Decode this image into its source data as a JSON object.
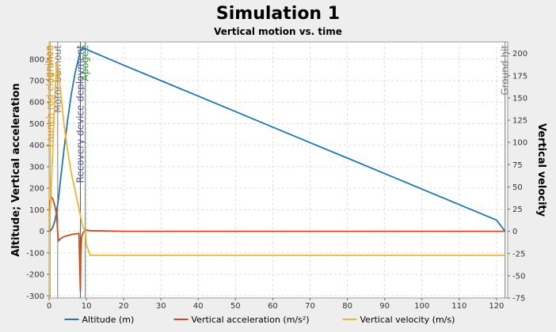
{
  "chart_data": {
    "type": "line",
    "title": "Simulation 1",
    "subtitle": "Vertical motion vs. time",
    "ylabel_left": "Altitude; Vertical acceleration",
    "ylabel_right": "Vertical velocity",
    "xlim": [
      0,
      123
    ],
    "ylim_left": [
      -310,
      880
    ],
    "ylim_right": [
      -75,
      213
    ],
    "x_ticks": [
      0,
      10,
      20,
      30,
      40,
      50,
      60,
      70,
      80,
      90,
      100,
      110,
      120
    ],
    "y_ticks_left": [
      -300,
      -200,
      -100,
      0,
      100,
      200,
      300,
      400,
      500,
      600,
      700,
      800
    ],
    "y_ticks_right": [
      -75,
      -50,
      -25,
      0,
      25,
      50,
      75,
      100,
      125,
      150,
      175,
      200
    ],
    "grid": true,
    "legend_position": "bottom",
    "events": [
      {
        "label": "Ignition",
        "x": 0,
        "color": "#d99a1e"
      },
      {
        "label": "Launch rod clearance",
        "x": 0.3,
        "color": "#d99a1e"
      },
      {
        "label": "Motor burnout",
        "x": 2.3,
        "color": "#7a7a7a"
      },
      {
        "label": "Recovery device deployment",
        "x": 8.4,
        "color": "#4c4ca6"
      },
      {
        "label": "Apogee",
        "x": 9.7,
        "color": "#3a9c3a"
      },
      {
        "label": "Ground hit",
        "x": 122.3,
        "color": "#7a7a7a"
      }
    ],
    "series": [
      {
        "name": "Altitude (m)",
        "axis": "left",
        "color": "#1f77b4",
        "x": [
          0,
          0.5,
          1,
          1.5,
          2,
          2.5,
          3,
          4,
          5,
          6,
          7,
          8,
          8.5,
          9,
          9.7,
          10,
          20,
          30,
          40,
          50,
          60,
          70,
          80,
          90,
          100,
          110,
          120,
          122.3
        ],
        "y": [
          0,
          5,
          20,
          45,
          90,
          150,
          230,
          380,
          520,
          640,
          740,
          810,
          840,
          850,
          850,
          845,
          772,
          700,
          628,
          556,
          484,
          412,
          340,
          268,
          196,
          124,
          52,
          0
        ]
      },
      {
        "name": "Vertical acceleration (m/s²)",
        "axis": "left",
        "color": "#cc4b1c",
        "x": [
          0,
          0.3,
          0.6,
          1,
          1.5,
          2,
          2.3,
          2.5,
          3,
          4,
          5,
          6,
          7,
          8,
          8.2,
          8.4,
          8.5,
          8.7,
          9,
          9.5,
          10,
          11,
          20,
          40,
          60,
          80,
          100,
          122.3
        ],
        "y": [
          0,
          140,
          160,
          150,
          120,
          80,
          0,
          -45,
          -35,
          -25,
          -20,
          -15,
          -12,
          -10,
          -150,
          -280,
          -100,
          -30,
          -10,
          0,
          5,
          3,
          0,
          0,
          0,
          0,
          0,
          0
        ]
      },
      {
        "name": "Vertical velocity (m/s)",
        "axis": "right",
        "color": "#f2b72e",
        "x": [
          0,
          0.5,
          1,
          1.5,
          2,
          2.3,
          3,
          4,
          5,
          6,
          7,
          8,
          8.4,
          9,
          9.7,
          10,
          11,
          20,
          40,
          60,
          80,
          100,
          122.3
        ],
        "y": [
          0,
          40,
          95,
          150,
          185,
          190,
          160,
          120,
          90,
          65,
          45,
          25,
          18,
          5,
          0,
          -15,
          -27,
          -27,
          -27,
          -27,
          -27,
          -27,
          -27
        ]
      }
    ]
  }
}
